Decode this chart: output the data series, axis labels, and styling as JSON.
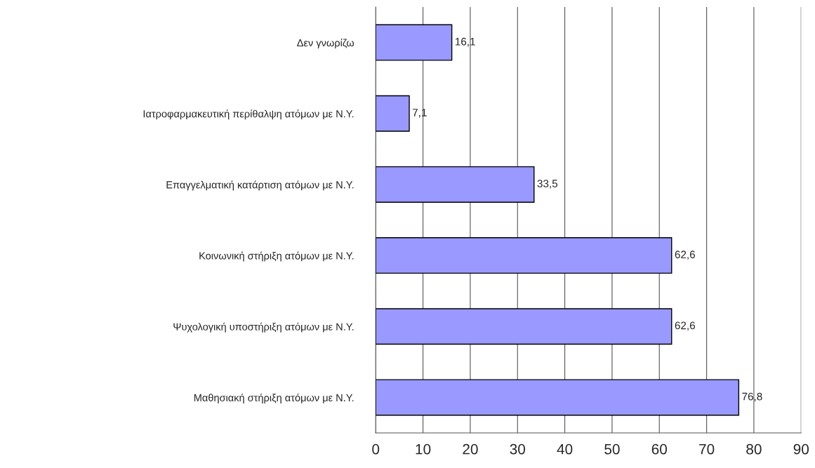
{
  "chart_data": {
    "type": "bar",
    "orientation": "horizontal",
    "categories": [
      "Δεν γνωρίζω",
      "Ιατροφαρμακευτική περίθαλψη ατόμων με Ν.Υ.",
      "Επαγγελματική κατάρτιση ατόμων με Ν.Υ.",
      "Κοινωνική στήριξη ατόμων με Ν.Υ.",
      "Ψυχολογική υποστήριξη ατόμων με Ν.Υ.",
      "Μαθησιακή στήριξη ατόμων με Ν.Υ."
    ],
    "values": [
      16.1,
      7.1,
      33.5,
      62.6,
      62.6,
      76.8
    ],
    "value_labels": [
      "16,1",
      "7,1",
      "33,5",
      "62,6",
      "62,6",
      "76,8"
    ],
    "color": "#9999ff",
    "xlim": [
      0,
      90
    ],
    "xticks": [
      0,
      10,
      20,
      30,
      40,
      50,
      60,
      70,
      80,
      90
    ],
    "grid": "x",
    "legend": false
  }
}
